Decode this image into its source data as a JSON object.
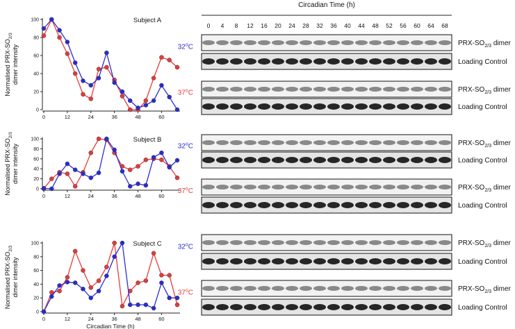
{
  "chart_data": [
    {
      "type": "line",
      "title": "Subject A",
      "y_label": {
        "main": "Normalised PRX-SO",
        "sub": "2/3",
        "line2": "dimer  intensity"
      },
      "x": [
        0,
        4,
        8,
        12,
        16,
        20,
        24,
        28,
        32,
        36,
        40,
        44,
        48,
        52,
        56,
        60,
        64,
        68
      ],
      "xlim": [
        0,
        68
      ],
      "xticks": [
        0,
        12,
        24,
        36,
        48,
        60
      ],
      "ylim": [
        0,
        100
      ],
      "yticks": [
        0,
        20,
        40,
        60,
        80,
        100
      ],
      "series": [
        {
          "color": "#2b2bd6",
          "values": [
            90,
            100,
            88,
            75,
            52,
            32,
            27,
            35,
            63,
            30,
            20,
            10,
            2,
            5,
            10,
            27,
            14,
            0
          ]
        },
        {
          "color": "#e83a3a",
          "values": [
            82,
            100,
            80,
            62,
            40,
            17,
            12,
            45,
            47,
            33,
            15,
            0,
            0,
            10,
            35,
            58,
            55,
            47
          ]
        }
      ]
    },
    {
      "type": "line",
      "title": "Subject B",
      "y_label": {
        "main": "Normalised PRX-SO",
        "sub": "2/3",
        "line2": "dimer  intensity"
      },
      "x": [
        0,
        4,
        8,
        12,
        16,
        20,
        24,
        28,
        32,
        36,
        40,
        44,
        48,
        52,
        56,
        60,
        64,
        68
      ],
      "xlim": [
        0,
        68
      ],
      "xticks": [
        0,
        12,
        24,
        36,
        48,
        60
      ],
      "ylim": [
        0,
        100
      ],
      "yticks": [
        0,
        20,
        40,
        60,
        80,
        100
      ],
      "series": [
        {
          "color": "#2b2bd6",
          "values": [
            1,
            0,
            30,
            50,
            38,
            30,
            22,
            32,
            100,
            78,
            35,
            5,
            10,
            7,
            63,
            72,
            43,
            57
          ]
        },
        {
          "color": "#e83a3a",
          "values": [
            0,
            20,
            33,
            30,
            5,
            33,
            72,
            100,
            98,
            72,
            45,
            38,
            45,
            58,
            60,
            58,
            45,
            22
          ]
        }
      ]
    },
    {
      "type": "line",
      "title": "Subject C",
      "y_label": {
        "main": "Normalised PRX-SO",
        "sub": "2/3",
        "line2": "dimer  intensity"
      },
      "x_label": "Circadian Time  (h)",
      "x": [
        0,
        4,
        8,
        12,
        16,
        20,
        24,
        28,
        32,
        36,
        40,
        44,
        48,
        52,
        56,
        60,
        64,
        68
      ],
      "xlim": [
        0,
        68
      ],
      "xticks": [
        0,
        12,
        24,
        36,
        48,
        60
      ],
      "ylim": [
        0,
        100
      ],
      "yticks": [
        0,
        20,
        40,
        60,
        80,
        100
      ],
      "series": [
        {
          "color": "#2b2bd6",
          "values": [
            0,
            22,
            38,
            43,
            42,
            33,
            20,
            30,
            52,
            80,
            100,
            10,
            10,
            10,
            5,
            42,
            20,
            20
          ]
        },
        {
          "color": "#e83a3a",
          "values": [
            0,
            28,
            30,
            50,
            88,
            60,
            35,
            45,
            65,
            100,
            8,
            30,
            42,
            45,
            85,
            53,
            53,
            10
          ]
        }
      ]
    }
  ],
  "blots": {
    "title": "Circadian Time (h)",
    "times": [
      "0",
      "4",
      "8",
      "12",
      "16",
      "20",
      "24",
      "28",
      "32",
      "36",
      "40",
      "44",
      "48",
      "52",
      "56",
      "60",
      "64",
      "68"
    ],
    "panels": [
      {
        "temp": {
          "num": "32",
          "deg": "o",
          "unit": "C"
        },
        "color": "#2b2bd6",
        "rows": [
          {
            "main": "PRX-SO",
            "sub": "2/3",
            "rest": " dimer"
          },
          {
            "main": "Loading Control"
          }
        ]
      },
      {
        "temp": {
          "num": "37",
          "deg": "o",
          "unit": "C"
        },
        "color": "#e83a3a",
        "rows": [
          {
            "main": "PRX-SO",
            "sub": "2/3",
            "rest": " dimer"
          },
          {
            "main": "Loading Control"
          }
        ]
      },
      {
        "temp": {
          "num": "32",
          "deg": "o",
          "unit": "C"
        },
        "color": "#2b2bd6",
        "rows": [
          {
            "main": "PRX-SO",
            "sub": "2/3",
            "rest": " dimer"
          },
          {
            "main": "Loading Control"
          }
        ]
      },
      {
        "temp": {
          "num": "37",
          "deg": "o",
          "unit": "C"
        },
        "color": "#e83a3a",
        "rows": [
          {
            "main": "PRX-SO",
            "sub": "2/3",
            "rest": " dimer"
          },
          {
            "main": "Loading Control"
          }
        ]
      },
      {
        "temp": {
          "num": "32",
          "deg": "o",
          "unit": "C"
        },
        "color": "#2b2bd6",
        "rows": [
          {
            "main": "PRX-SO",
            "sub": "2/3",
            "rest": " dimer"
          },
          {
            "main": "Loading Control"
          }
        ]
      },
      {
        "temp": {
          "num": "37",
          "deg": "o",
          "unit": "C"
        },
        "color": "#e83a3a",
        "rows": [
          {
            "main": "PRX-SO",
            "sub": "2/3",
            "rest": " dimer"
          },
          {
            "main": "Loading Control"
          }
        ]
      }
    ]
  }
}
